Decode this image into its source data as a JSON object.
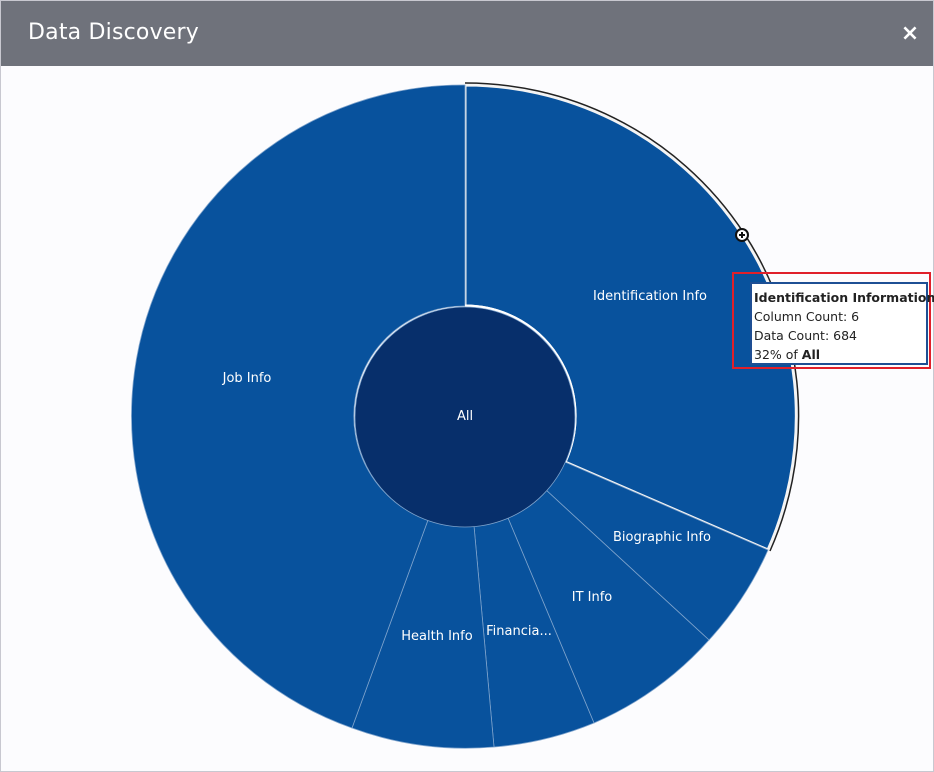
{
  "dialog": {
    "title": "Data Discovery",
    "close_label": "×"
  },
  "chart": {
    "center_label": "All",
    "segment_labels": {
      "identification": "Identification Info",
      "biographic": "Biographic Info",
      "it": "IT Info",
      "financial": "Financia...",
      "health": "Health Info",
      "job": "Job Info"
    },
    "colors": {
      "segment": "#08529d",
      "center": "#072f6b",
      "highlight_stroke": "#ffffff"
    },
    "zoom_icon": "plus-circle-icon"
  },
  "tooltip": {
    "title": "Identification Information",
    "column_count": "Column Count: 6",
    "data_count": "Data Count: 684",
    "share_prefix": "32% of ",
    "share_target": "All"
  }
}
